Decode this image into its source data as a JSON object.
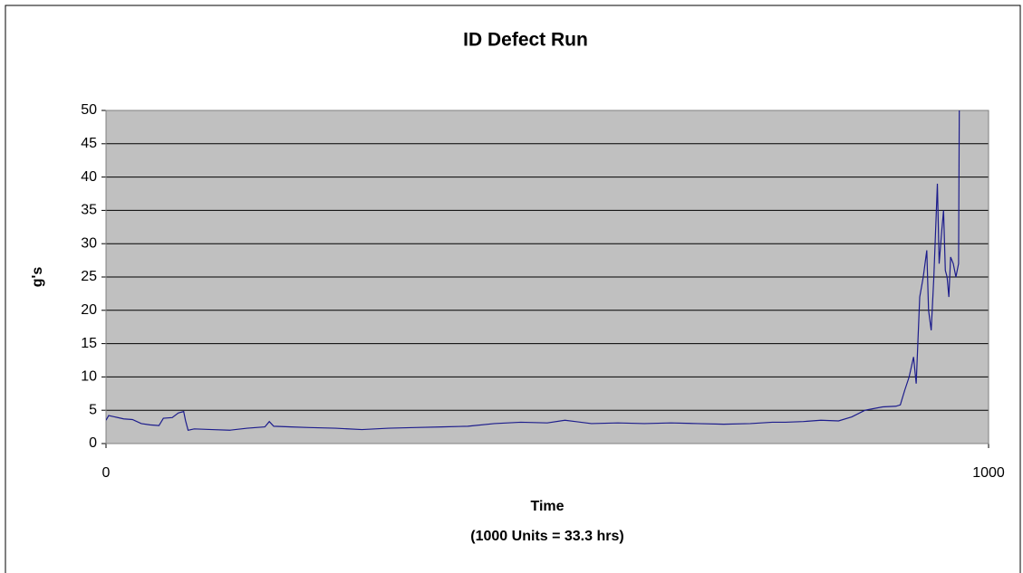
{
  "chart_data": {
    "type": "line",
    "title": "ID Defect Run",
    "ylabel": "g's",
    "xlabel": [
      "Time",
      "(1000 Units = 33.3 hrs)"
    ],
    "x": [
      0,
      3,
      10,
      20,
      30,
      40,
      50,
      60,
      65,
      75,
      82,
      88,
      90,
      93,
      100,
      120,
      140,
      160,
      180,
      185,
      190,
      210,
      230,
      260,
      290,
      320,
      350,
      380,
      410,
      440,
      470,
      500,
      520,
      550,
      580,
      610,
      640,
      670,
      700,
      730,
      755,
      770,
      790,
      810,
      830,
      845,
      860,
      880,
      895,
      900,
      905,
      910,
      915,
      918,
      922,
      926,
      930,
      932,
      935,
      938,
      942,
      944,
      947,
      949,
      951,
      953,
      955,
      957,
      960,
      963,
      966,
      967
    ],
    "series": [
      {
        "name": "g's",
        "color": "#1c1c8c",
        "values": [
          3.5,
          4.2,
          4.0,
          3.7,
          3.6,
          3.0,
          2.8,
          2.7,
          3.8,
          3.9,
          4.6,
          4.8,
          3.5,
          2.0,
          2.2,
          2.1,
          2.0,
          2.3,
          2.5,
          3.3,
          2.6,
          2.5,
          2.4,
          2.3,
          2.1,
          2.3,
          2.4,
          2.5,
          2.6,
          3.0,
          3.2,
          3.1,
          3.5,
          3.0,
          3.1,
          3.0,
          3.1,
          3.0,
          2.9,
          3.0,
          3.2,
          3.2,
          3.3,
          3.5,
          3.4,
          4.0,
          5.0,
          5.5,
          5.6,
          5.8,
          8,
          10,
          13,
          9,
          22,
          25,
          29,
          20,
          17,
          25,
          39,
          27,
          32,
          35,
          26,
          25,
          22,
          28,
          27,
          25,
          27,
          55
        ]
      }
    ],
    "xlim": [
      0,
      1000
    ],
    "xticks": [
      0,
      1000
    ],
    "ylim": [
      0,
      50
    ],
    "yticks": [
      0,
      5,
      10,
      15,
      20,
      25,
      30,
      35,
      40,
      45,
      50
    ],
    "grid": true,
    "plot_background": "#c0c0c0"
  }
}
